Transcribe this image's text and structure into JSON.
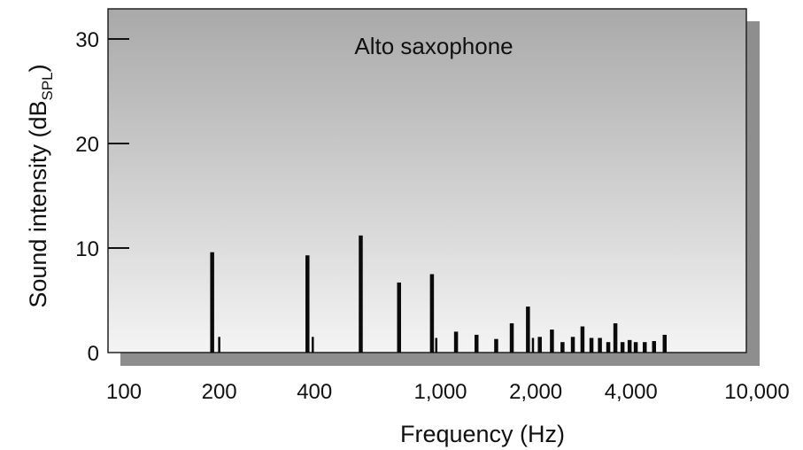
{
  "chart_data": {
    "type": "bar",
    "title": "Alto saxophone",
    "xlabel": "Frequency (Hz)",
    "ylabel_main": "Sound intensity (dB",
    "ylabel_sub": "SPL",
    "ylabel_close": ")",
    "x_scale": "log",
    "xlim": [
      100,
      10000
    ],
    "ylim": [
      0,
      33
    ],
    "x_ticks": [
      {
        "value": 100,
        "label": "100"
      },
      {
        "value": 200,
        "label": "200"
      },
      {
        "value": 400,
        "label": "400"
      },
      {
        "value": 1000,
        "label": "1,000"
      },
      {
        "value": 2000,
        "label": "2,000"
      },
      {
        "value": 4000,
        "label": "4,000"
      },
      {
        "value": 10000,
        "label": "10,000"
      }
    ],
    "y_ticks": [
      {
        "value": 0,
        "label": "0"
      },
      {
        "value": 10,
        "label": "10"
      },
      {
        "value": 20,
        "label": "20"
      },
      {
        "value": 30,
        "label": "30"
      }
    ],
    "grid": false,
    "series": [
      {
        "values": [
          {
            "x": 190,
            "y": 9.6
          },
          {
            "x": 380,
            "y": 9.3
          },
          {
            "x": 560,
            "y": 11.2
          },
          {
            "x": 740,
            "y": 6.7
          },
          {
            "x": 940,
            "y": 7.5
          },
          {
            "x": 1120,
            "y": 2.0
          },
          {
            "x": 1300,
            "y": 1.7
          },
          {
            "x": 1500,
            "y": 1.3
          },
          {
            "x": 1680,
            "y": 2.8
          },
          {
            "x": 1890,
            "y": 4.4
          },
          {
            "x": 2060,
            "y": 1.5
          },
          {
            "x": 2250,
            "y": 2.2
          },
          {
            "x": 2430,
            "y": 1.0
          },
          {
            "x": 2620,
            "y": 1.5
          },
          {
            "x": 2810,
            "y": 2.5
          },
          {
            "x": 3000,
            "y": 1.4
          },
          {
            "x": 3190,
            "y": 1.4
          },
          {
            "x": 3390,
            "y": 1.0
          },
          {
            "x": 3570,
            "y": 2.8
          },
          {
            "x": 3760,
            "y": 1.0
          },
          {
            "x": 3960,
            "y": 1.2
          },
          {
            "x": 4140,
            "y": 1.0
          },
          {
            "x": 4420,
            "y": 1.0
          },
          {
            "x": 4730,
            "y": 1.1
          },
          {
            "x": 5110,
            "y": 1.7
          }
        ]
      },
      {
        "values": [
          {
            "x": 200,
            "y": 1.5
          },
          {
            "x": 395,
            "y": 1.5
          },
          {
            "x": 970,
            "y": 1.4
          },
          {
            "x": 1960,
            "y": 1.4
          }
        ]
      }
    ]
  }
}
